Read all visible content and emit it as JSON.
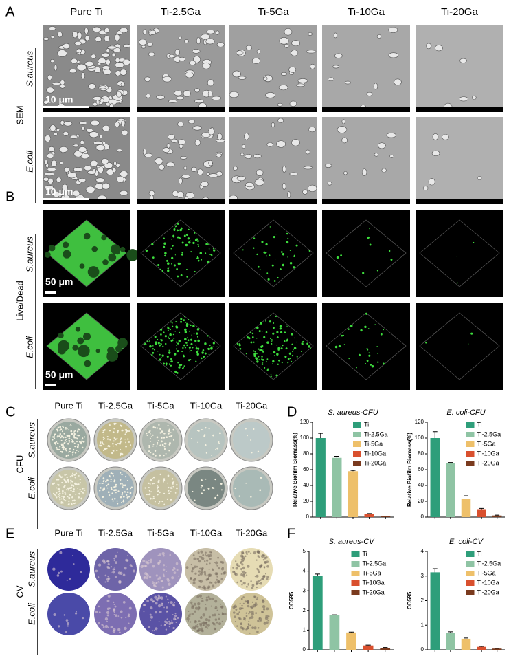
{
  "panel_a": {
    "label": "A",
    "columns": [
      "Pure Ti",
      "Ti-2.5Ga",
      "Ti-5Ga",
      "Ti-10Ga",
      "Ti-20Ga"
    ],
    "rows": [
      "S.aureus",
      "E.coli"
    ],
    "method": "SEM",
    "scale_bars": [
      "10 μm",
      "10 μm"
    ]
  },
  "panel_b": {
    "label": "B",
    "rows": [
      "S.aureus",
      "E.coli"
    ],
    "method": "Live/Dead",
    "scale_bars": [
      "50 μm",
      "50 μm"
    ]
  },
  "panel_c": {
    "label": "C",
    "columns": [
      "Pure Ti",
      "Ti-2.5Ga",
      "Ti-5Ga",
      "Ti-10Ga",
      "Ti-20Ga"
    ],
    "rows": [
      "S.aureus",
      "E.coli"
    ],
    "method": "CFU"
  },
  "panel_d": {
    "label": "D"
  },
  "panel_e": {
    "label": "E",
    "columns": [
      "Pure Ti",
      "Ti-2.5Ga",
      "Ti-5Ga",
      "Ti-10Ga",
      "Ti-20Ga"
    ],
    "rows": [
      "S.aureus",
      "E.coli"
    ],
    "method": "CV"
  },
  "panel_f": {
    "label": "F"
  },
  "chart_data": [
    {
      "type": "bar",
      "title": "S. aureus-CFU",
      "y_label": "Relative Biofilm Biomass(%)",
      "categories": [
        "Ti",
        "Ti-2.5Ga",
        "Ti-5Ga",
        "Ti-10Ga",
        "Ti-20Ga"
      ],
      "colors": [
        "#2e9e7a",
        "#8fc4a4",
        "#eec06a",
        "#d9502e",
        "#7a3a1e"
      ],
      "values": [
        100,
        75,
        58,
        4,
        1
      ],
      "errors": [
        6,
        2,
        1,
        0.5,
        0.3
      ],
      "ylim": [
        0,
        120
      ],
      "yticks": [
        0,
        20,
        40,
        60,
        80,
        100,
        120
      ]
    },
    {
      "type": "bar",
      "title": "E. coli-CFU",
      "y_label": "Relative Biofilm Biomass(%)",
      "categories": [
        "Ti",
        "Ti-2.5Ga",
        "Ti-5Ga",
        "Ti-10Ga",
        "Ti-20Ga"
      ],
      "colors": [
        "#2e9e7a",
        "#8fc4a4",
        "#eec06a",
        "#d9502e",
        "#7a3a1e"
      ],
      "values": [
        100,
        68,
        23,
        10,
        2
      ],
      "errors": [
        8,
        1,
        4,
        1,
        0.5
      ],
      "ylim": [
        0,
        120
      ],
      "yticks": [
        0,
        20,
        40,
        60,
        80,
        100,
        120
      ]
    },
    {
      "type": "bar",
      "title": "S. aureus-CV",
      "y_label": "OD595",
      "categories": [
        "Ti",
        "Ti-2.5Ga",
        "Ti-5Ga",
        "Ti-10Ga",
        "Ti-20Ga"
      ],
      "colors": [
        "#2e9e7a",
        "#8fc4a4",
        "#eec06a",
        "#d9502e",
        "#7a3a1e"
      ],
      "values": [
        3.75,
        1.75,
        0.88,
        0.22,
        0.1
      ],
      "errors": [
        0.1,
        0.03,
        0.02,
        0.02,
        0.02
      ],
      "ylim": [
        0,
        5
      ],
      "yticks": [
        0,
        1,
        2,
        3,
        4,
        5
      ]
    },
    {
      "type": "bar",
      "title": "E. coli-CV",
      "y_label": "OD595",
      "categories": [
        "Ti",
        "Ti-2.5Ga",
        "Ti-5Ga",
        "Ti-10Ga",
        "Ti-20Ga"
      ],
      "colors": [
        "#2e9e7a",
        "#8fc4a4",
        "#eec06a",
        "#d9502e",
        "#7a3a1e"
      ],
      "values": [
        3.15,
        0.68,
        0.45,
        0.12,
        0.05
      ],
      "errors": [
        0.15,
        0.05,
        0.03,
        0.02,
        0.01
      ],
      "ylim": [
        0,
        4
      ],
      "yticks": [
        0,
        1,
        2,
        3,
        4
      ]
    }
  ]
}
